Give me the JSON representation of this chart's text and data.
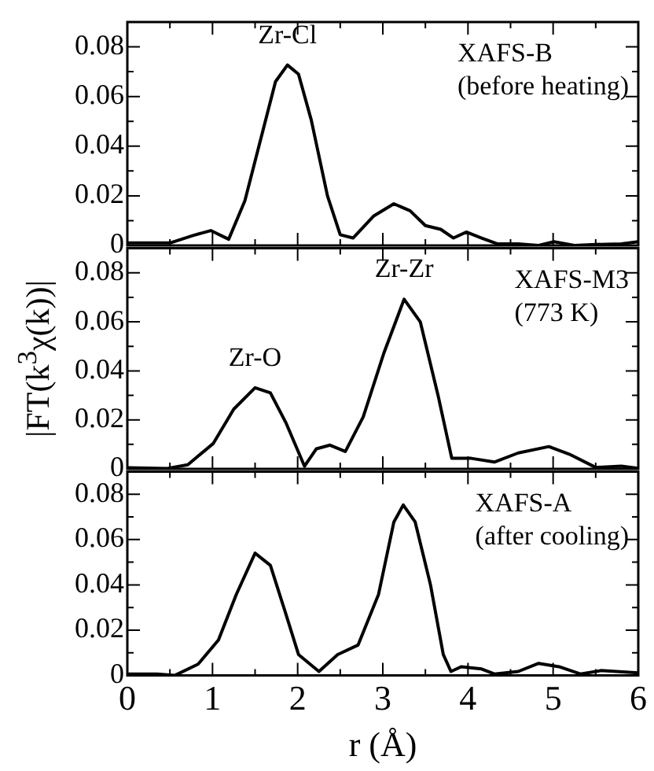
{
  "chart_data": [
    {
      "type": "line",
      "color": "#000000",
      "marker": "none",
      "line_style": "solid",
      "grid": false,
      "legend": false,
      "tick_labels": "y",
      "x": [
        0,
        0.5,
        0.77,
        0.98,
        1.19,
        1.38,
        1.56,
        1.74,
        1.88,
        2.01,
        2.16,
        2.35,
        2.5,
        2.65,
        2.89,
        3.13,
        3.32,
        3.5,
        3.68,
        3.83,
        3.98,
        4.16,
        4.35,
        4.59,
        4.83,
        5.01,
        5.25,
        5.5,
        5.8,
        6
      ],
      "values": [
        0.001,
        0.001,
        0.004,
        0.006,
        0.0025,
        0.018,
        0.042,
        0.066,
        0.0727,
        0.069,
        0.0505,
        0.02,
        0.0043,
        0.003,
        0.0118,
        0.0168,
        0.014,
        0.008,
        0.0065,
        0.003,
        0.0054,
        0.003,
        0.0006,
        0.0006,
        0,
        0.0015,
        0,
        0.0004,
        0.0006,
        0.0015
      ],
      "xlim": [
        0,
        6
      ],
      "xticks": [
        0,
        1,
        2,
        3,
        4,
        5,
        6
      ],
      "ylim": [
        0,
        0.09
      ],
      "yticks": [
        0,
        0.02,
        0.04,
        0.06,
        0.08
      ],
      "annotations": [
        {
          "text": "Zr-Cl",
          "x": 1.88,
          "y": 0.0727
        },
        "XAFS-B",
        "(before heating)"
      ]
    },
    {
      "type": "line",
      "color": "#000000",
      "marker": "none",
      "line_style": "solid",
      "grid": false,
      "legend": false,
      "tick_labels": "y",
      "ylabel": "|FT(k$^{3}$χ(k))|",
      "x": [
        0,
        0.47,
        0.71,
        1.01,
        1.25,
        1.5,
        1.68,
        1.86,
        2.08,
        2.22,
        2.38,
        2.56,
        2.77,
        3.01,
        3.25,
        3.44,
        3.65,
        3.81,
        4.04,
        4.31,
        4.59,
        4.95,
        5.19,
        5.5,
        5.8,
        6
      ],
      "values": [
        0.0005,
        0.0002,
        0.0017,
        0.0104,
        0.0244,
        0.0331,
        0.031,
        0.019,
        0.0011,
        0.0082,
        0.0097,
        0.0071,
        0.0212,
        0.047,
        0.0692,
        0.06,
        0.0298,
        0.0043,
        0.0043,
        0.0028,
        0.0065,
        0.0091,
        0.006,
        0.0006,
        0.0011,
        0.0002
      ],
      "xlim": [
        0,
        6
      ],
      "xticks": [
        0,
        1,
        2,
        3,
        4,
        5,
        6
      ],
      "ylim": [
        0,
        0.09
      ],
      "yticks": [
        0,
        0.02,
        0.04,
        0.06,
        0.08
      ],
      "annotations": [
        {
          "text": "Zr-O",
          "x": 1.5,
          "y": 0.0331
        },
        {
          "text": "Zr-Zr",
          "x": 3.25,
          "y": 0.0692
        },
        "XAFS-M3",
        "(773 K)"
      ]
    },
    {
      "type": "line",
      "color": "#000000",
      "marker": "none",
      "line_style": "solid",
      "grid": false,
      "legend": false,
      "xlabel": "r (Å)",
      "x": [
        0,
        0.35,
        0.56,
        0.83,
        1.07,
        1.28,
        1.5,
        1.68,
        1.86,
        2.01,
        2.25,
        2.47,
        2.71,
        2.95,
        3.13,
        3.24,
        3.38,
        3.56,
        3.71,
        3.8,
        3.92,
        4.16,
        4.31,
        4.59,
        4.83,
        5.07,
        5.32,
        5.56,
        6
      ],
      "values": [
        0.0006,
        0.0006,
        0,
        0.0049,
        0.0156,
        0.0358,
        0.054,
        0.0486,
        0.0273,
        0.0092,
        0.0017,
        0.0092,
        0.0134,
        0.0358,
        0.0678,
        0.0753,
        0.0678,
        0.04,
        0.0092,
        0.0017,
        0.0038,
        0.0028,
        0.0006,
        0.0017,
        0.0053,
        0.0038,
        0.0006,
        0.0021,
        0.0011
      ],
      "xlim": [
        0,
        6
      ],
      "xticks": [
        0,
        1,
        2,
        3,
        4,
        5,
        6
      ],
      "ylim": [
        0,
        0.09
      ],
      "yticks": [
        0,
        0.02,
        0.04,
        0.06,
        0.08
      ],
      "annotations": [
        "XAFS-A",
        "(after cooling)"
      ]
    }
  ]
}
